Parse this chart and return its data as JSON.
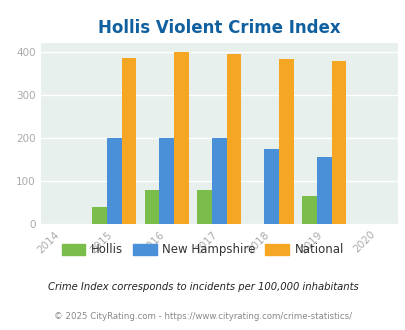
{
  "title": "Hollis Violent Crime Index",
  "years": [
    2014,
    2015,
    2016,
    2017,
    2018,
    2019,
    2020
  ],
  "bar_years": [
    2015,
    2016,
    2017,
    2018,
    2019
  ],
  "hollis": [
    40,
    80,
    80,
    0,
    65
  ],
  "new_hampshire": [
    200,
    200,
    200,
    175,
    155
  ],
  "national": [
    385,
    398,
    394,
    382,
    379
  ],
  "hollis_color": "#7BBD4A",
  "new_hampshire_color": "#4A90D9",
  "national_color": "#F5A623",
  "background_color": "#E8F0EE",
  "title_color": "#1060A0",
  "ylim": [
    0,
    420
  ],
  "yticks": [
    0,
    100,
    200,
    300,
    400
  ],
  "note_text": "Crime Index corresponds to incidents per 100,000 inhabitants",
  "copyright_text": "© 2025 CityRating.com - https://www.cityrating.com/crime-statistics/",
  "note_color": "#222222",
  "copyright_color": "#888888",
  "legend_labels": [
    "Hollis",
    "New Hampshire",
    "National"
  ],
  "bar_width": 0.28,
  "tick_color": "#aaaaaa",
  "grid_color": "white"
}
